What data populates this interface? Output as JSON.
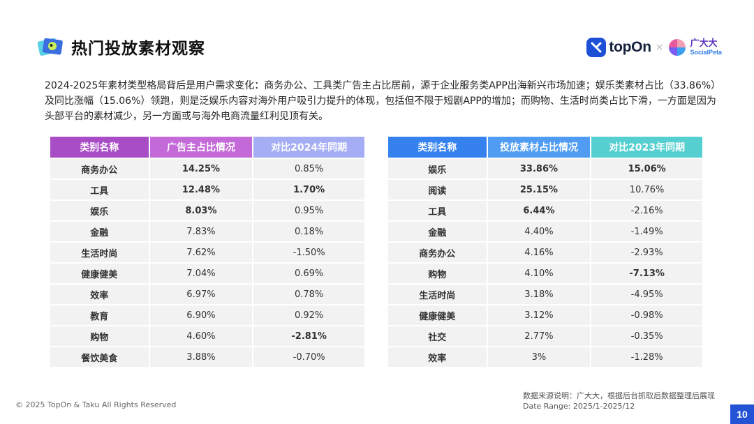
{
  "page": {
    "title": "热门投放素材观察",
    "intro": "2024-2025年素材类型格局背后是用户需求变化：商务办公、工具类广告主占比居前，源于企业服务类APP出海新兴市场加速；娱乐类素材占比（33.86%）及同比涨幅（15.06%）领跑，则是泛娱乐内容对海外用户吸引力提升的体现，包括但不限于短剧APP的增加；而购物、生活时尚类占比下滑，一方面是因为头部平台的素材减少，另一方面或与海外电商流量红利见顶有关。"
  },
  "logos": {
    "topon": "topOn",
    "separator": "×",
    "sp_cn": "广大大",
    "sp_en": "SocialPeta"
  },
  "left_table": {
    "headers": [
      "类别名称",
      "广告主占比情况",
      "对比2024年同期"
    ],
    "rows": [
      {
        "name": "商务办公",
        "share": "14.25%",
        "change": "0.85%"
      },
      {
        "name": "工具",
        "share": "12.48%",
        "change": "1.70%"
      },
      {
        "name": "娱乐",
        "share": "8.03%",
        "change": "0.95%"
      },
      {
        "name": "金融",
        "share": "7.83%",
        "change": "0.18%"
      },
      {
        "name": "生活时尚",
        "share": "7.62%",
        "change": "-1.50%"
      },
      {
        "name": "健康健美",
        "share": "7.04%",
        "change": "0.69%"
      },
      {
        "name": "效率",
        "share": "6.97%",
        "change": "0.78%"
      },
      {
        "name": "教育",
        "share": "6.90%",
        "change": "0.92%"
      },
      {
        "name": "购物",
        "share": "4.60%",
        "change": "-2.81%"
      },
      {
        "name": "餐饮美食",
        "share": "3.88%",
        "change": "-0.70%"
      }
    ]
  },
  "right_table": {
    "headers": [
      "类别名称",
      "投放素材占比情况",
      "对比2023年同期"
    ],
    "rows": [
      {
        "name": "娱乐",
        "share": "33.86%",
        "change": "15.06%"
      },
      {
        "name": "阅读",
        "share": "25.15%",
        "change": "10.76%"
      },
      {
        "name": "工具",
        "share": "6.44%",
        "change": "-2.16%"
      },
      {
        "name": "金融",
        "share": "4.40%",
        "change": "-1.49%"
      },
      {
        "name": "商务办公",
        "share": "4.16%",
        "change": "-2.93%"
      },
      {
        "name": "购物",
        "share": "4.10%",
        "change": "-7.13%"
      },
      {
        "name": "生活时尚",
        "share": "3.18%",
        "change": "-4.95%"
      },
      {
        "name": "健康健美",
        "share": "3.12%",
        "change": "-0.98%"
      },
      {
        "name": "社交",
        "share": "2.77%",
        "change": "-0.35%"
      },
      {
        "name": "效率",
        "share": "3%",
        "change": "-1.28%"
      }
    ]
  },
  "footer": {
    "source": "数据来源说明：广大大，根据后台抓取后数据整理后展现",
    "date_range": "Date Range:  2025/1-2025/12",
    "copyright": "© 2025 TopOn & Taku All Rights Reserved",
    "page_number": "10"
  },
  "colors": {
    "left_header_1": "#a94dc6",
    "left_header_2": "#c36ad8",
    "left_header_3": "#a5aef4",
    "right_header_1": "#3582ef",
    "right_header_2": "#4f9cf2",
    "right_header_3": "#55cfd0",
    "highlight_purple": "#b24ee0",
    "highlight_blue": "#2f86f0",
    "page_badge": "#2453d6"
  }
}
